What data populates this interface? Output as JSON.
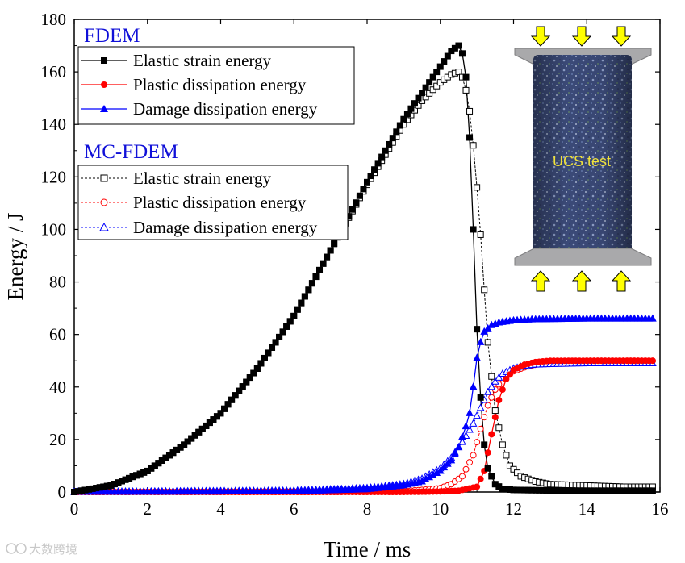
{
  "chart_data": {
    "type": "line",
    "xlabel": "Time / ms",
    "ylabel": "Energy / J",
    "xlim": [
      0,
      16
    ],
    "ylim": [
      0,
      180
    ],
    "x_ticks": [
      0,
      2,
      4,
      6,
      8,
      10,
      12,
      14,
      16
    ],
    "y_ticks": [
      0,
      20,
      40,
      60,
      80,
      100,
      120,
      140,
      160,
      180
    ],
    "legend_groups": [
      {
        "title": "FDEM",
        "entries": [
          "Elastic strain energy",
          "Plastic dissipation energy",
          "Damage dissipation energy"
        ],
        "line_style": "solid",
        "marker_fill": "filled"
      },
      {
        "title": "MC-FDEM",
        "entries": [
          "Elastic strain energy",
          "Plastic dissipation energy",
          "Damage dissipation energy"
        ],
        "line_style": "dashed",
        "marker_fill": "open"
      }
    ],
    "series": [
      {
        "name": "FDEM Elastic strain energy",
        "color": "#000000",
        "marker": "square",
        "filled": true,
        "dashed": false,
        "x": [
          0,
          1,
          2,
          3,
          4,
          5,
          6,
          7,
          8,
          9,
          9.5,
          10,
          10.3,
          10.5,
          10.6,
          10.7,
          10.8,
          10.9,
          11.0,
          11.1,
          11.2,
          11.3,
          11.5,
          11.7,
          12,
          13,
          14,
          15,
          15.8
        ],
        "values": [
          0,
          2.5,
          8,
          18,
          30,
          47,
          67,
          92,
          118,
          142,
          152,
          162,
          168,
          170,
          167,
          158,
          135,
          100,
          62,
          36,
          18,
          9,
          3,
          1.2,
          0.8,
          0.6,
          0.5,
          0.5,
          0.5
        ]
      },
      {
        "name": "FDEM Plastic dissipation energy",
        "color": "#ff0000",
        "marker": "circle",
        "filled": true,
        "dashed": false,
        "x": [
          0,
          9,
          10,
          10.5,
          11,
          11.2,
          11.4,
          11.6,
          11.8,
          12,
          12.3,
          12.6,
          13,
          14,
          15,
          15.8
        ],
        "values": [
          0,
          0,
          0.2,
          0.5,
          2,
          8,
          22,
          35,
          43,
          46.5,
          48.5,
          49.5,
          50,
          50,
          50,
          50
        ]
      },
      {
        "name": "FDEM Damage dissipation energy",
        "color": "#0000ff",
        "marker": "triangle",
        "filled": true,
        "dashed": false,
        "x": [
          0,
          6,
          8,
          9,
          9.5,
          10,
          10.3,
          10.5,
          10.7,
          10.8,
          10.9,
          11.0,
          11.1,
          11.2,
          11.4,
          11.6,
          12,
          12.5,
          13,
          14,
          15,
          15.8
        ],
        "values": [
          0,
          0.2,
          1,
          2.5,
          4,
          8,
          12,
          17,
          25,
          30,
          40,
          51,
          57,
          61,
          63.5,
          64.5,
          65.3,
          65.7,
          65.8,
          66,
          66,
          66
        ]
      },
      {
        "name": "MC-FDEM Elastic strain energy",
        "color": "#000000",
        "marker": "square",
        "filled": false,
        "dashed": true,
        "x": [
          0,
          1,
          2,
          3,
          4,
          5,
          6,
          7,
          8,
          9,
          9.5,
          10,
          10.3,
          10.5,
          10.6,
          10.7,
          10.8,
          10.9,
          11.0,
          11.1,
          11.2,
          11.3,
          11.5,
          11.7,
          11.9,
          12.2,
          12.6,
          13,
          14,
          15,
          15.8
        ],
        "values": [
          0,
          2.5,
          8,
          18,
          30,
          47,
          67,
          92,
          117,
          140,
          149,
          156,
          159,
          160,
          158,
          153,
          145,
          132,
          116,
          98,
          77,
          57,
          31,
          18,
          10,
          6,
          4,
          3,
          2.5,
          2,
          2
        ]
      },
      {
        "name": "MC-FDEM Plastic dissipation energy",
        "color": "#ff0000",
        "marker": "circle",
        "filled": false,
        "dashed": true,
        "x": [
          0,
          9,
          9.5,
          10,
          10.3,
          10.6,
          10.9,
          11.1,
          11.3,
          11.5,
          11.7,
          12,
          12.3,
          12.6,
          13,
          14,
          15,
          15.8
        ],
        "values": [
          0,
          0.3,
          0.8,
          1.5,
          3,
          6,
          14,
          24,
          33,
          39,
          43,
          46,
          47.5,
          48.5,
          49.5,
          50,
          50,
          50
        ]
      },
      {
        "name": "MC-FDEM Damage dissipation energy",
        "color": "#0000ff",
        "marker": "triangle",
        "filled": false,
        "dashed": true,
        "x": [
          0,
          6,
          8,
          9,
          9.5,
          10,
          10.3,
          10.6,
          10.9,
          11.1,
          11.3,
          11.5,
          11.7,
          12,
          12.3,
          12.6,
          13,
          14,
          15,
          15.8
        ],
        "values": [
          0,
          0.5,
          1.5,
          3,
          5,
          9,
          13,
          19,
          26,
          32,
          38,
          42,
          45,
          47,
          48,
          48.5,
          48.7,
          49,
          49,
          49
        ]
      }
    ]
  },
  "inset": {
    "label": "UCS test"
  },
  "watermark": "大数跨境"
}
